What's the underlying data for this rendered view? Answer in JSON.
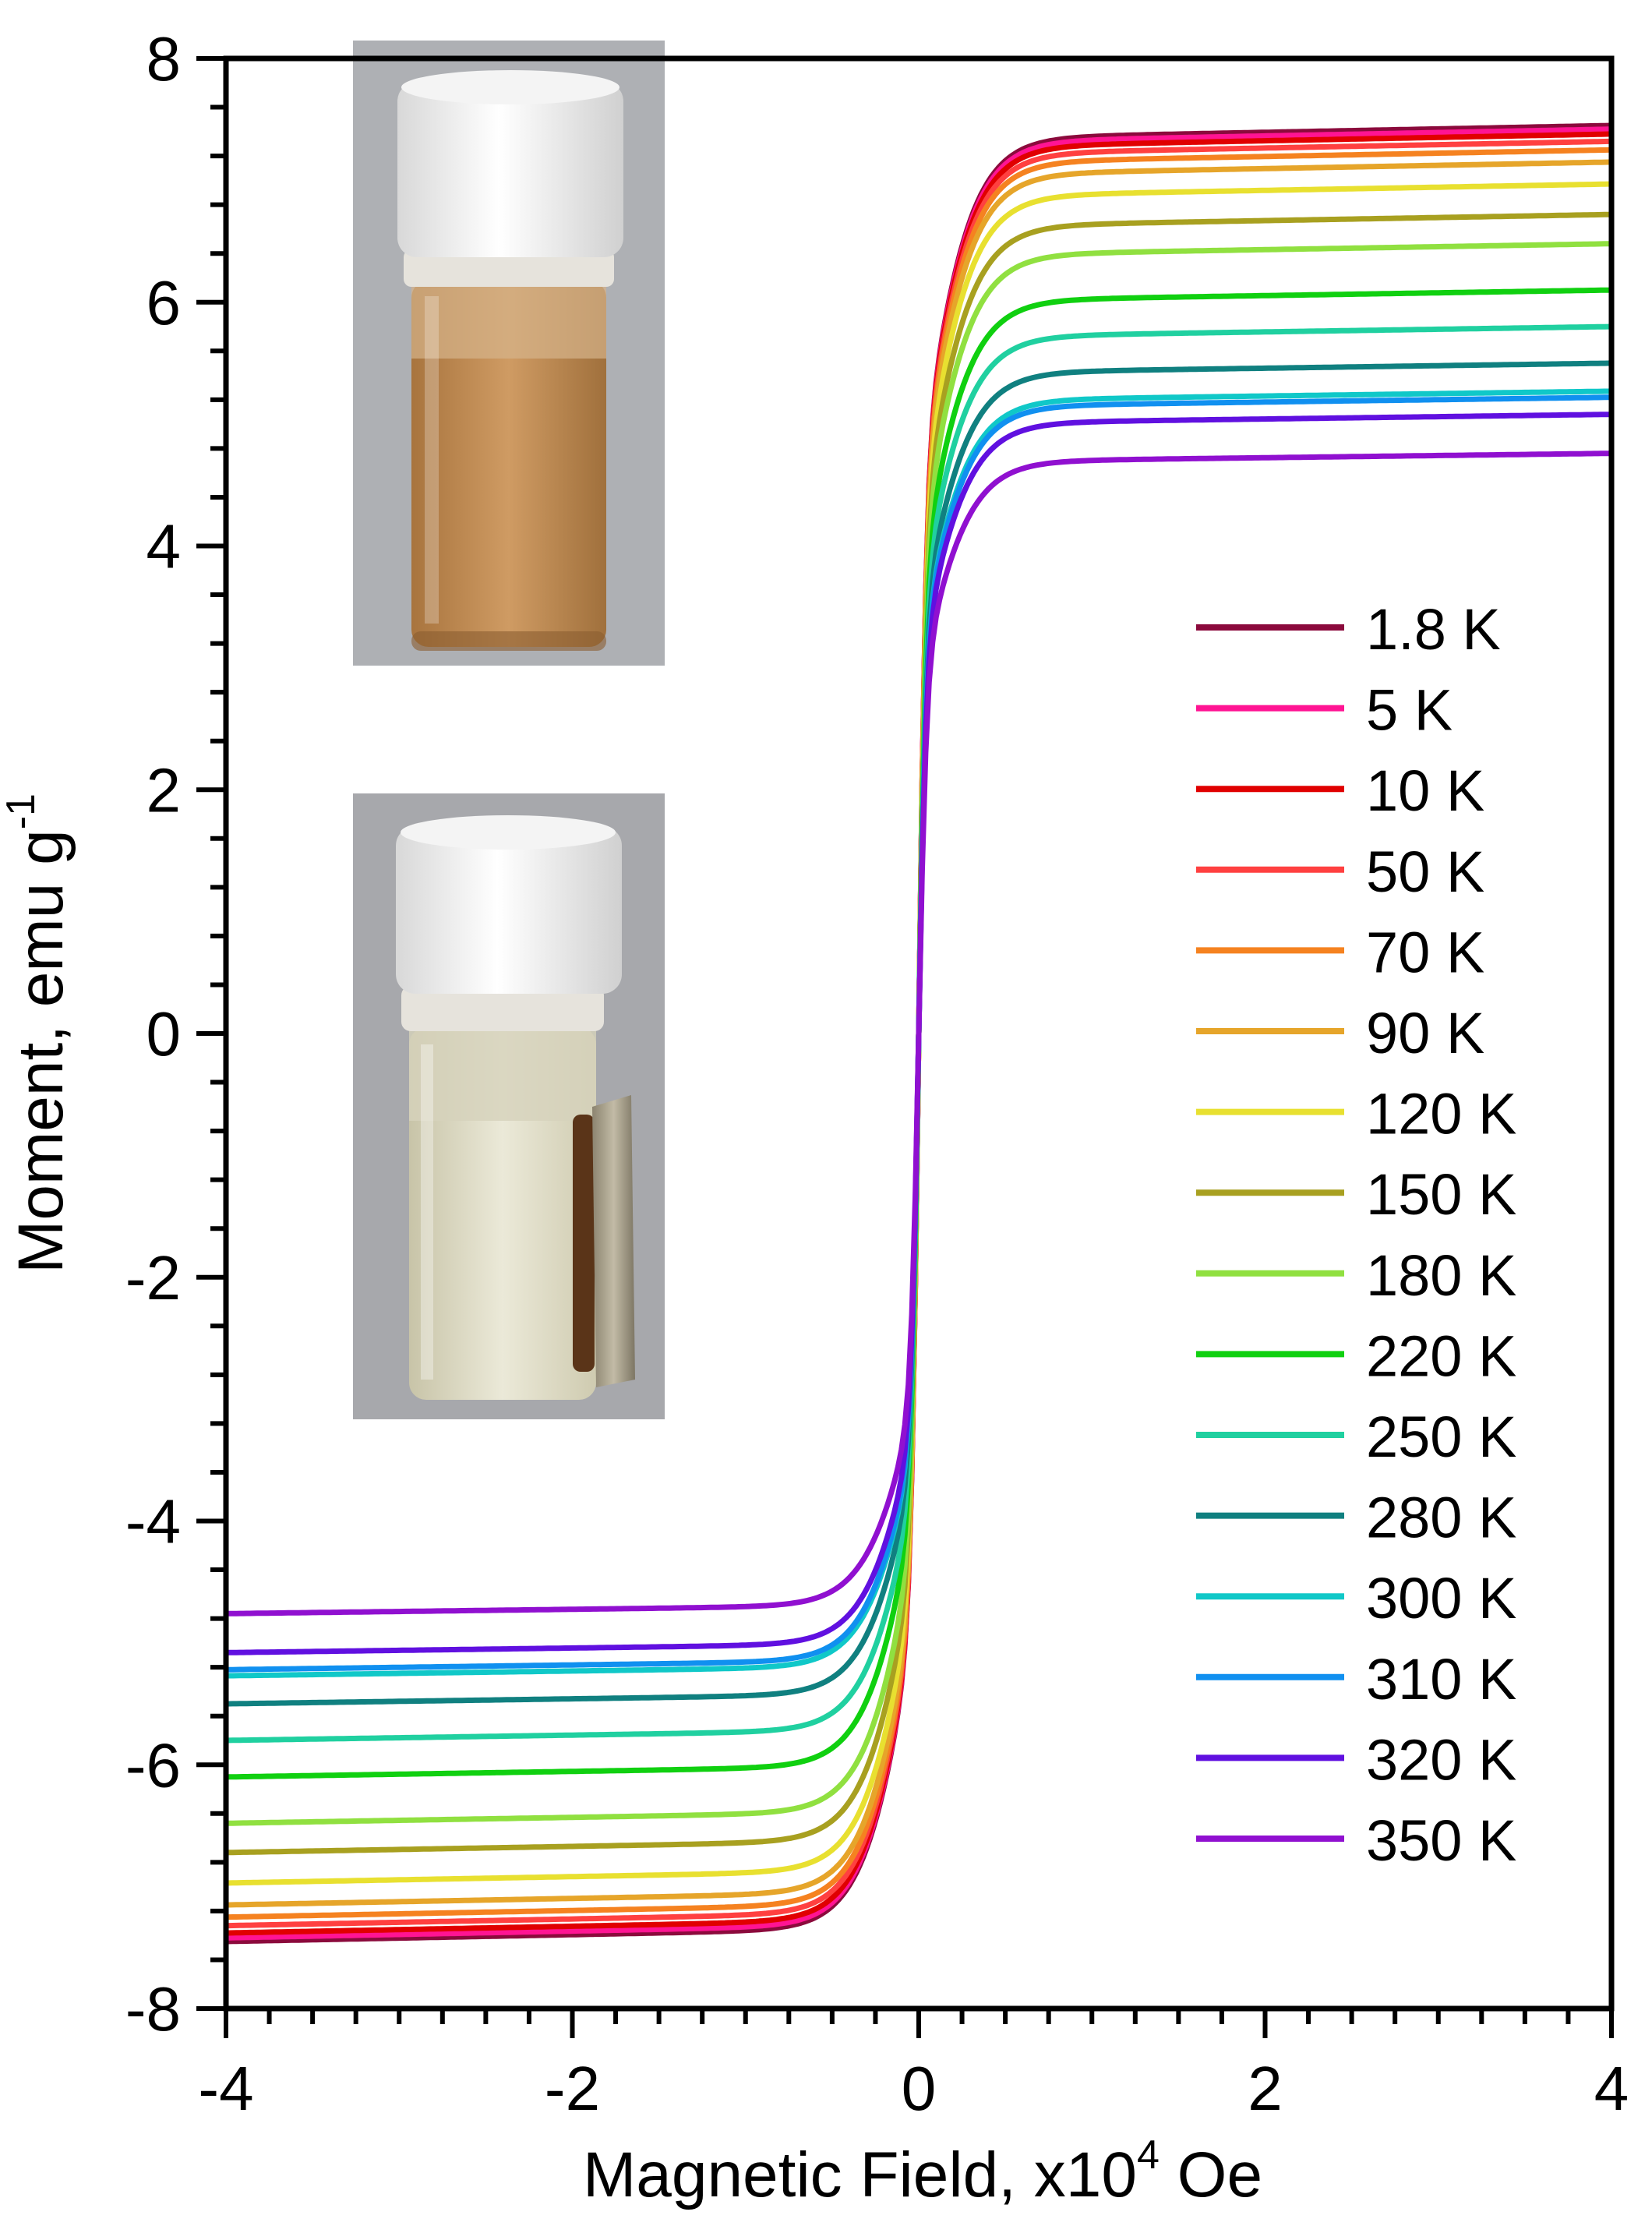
{
  "chart_data": {
    "type": "line",
    "title": "",
    "xlabel": "Magnetic Field, x10",
    "xlabel_sup": "4",
    "xlabel_unit": " Oe",
    "ylabel": "Moment, emu g",
    "ylabel_sup": "-1",
    "xlim": [
      -4,
      4
    ],
    "ylim": [
      -8,
      8
    ],
    "x_ticks": [
      -4,
      -2,
      0,
      2,
      4
    ],
    "y_ticks": [
      -8,
      -6,
      -4,
      -2,
      0,
      2,
      4,
      6,
      8
    ],
    "x_tick_labels": [
      "-4",
      "-2",
      "0",
      "2",
      "4"
    ],
    "y_tick_labels": [
      "-8",
      "-6",
      "-4",
      "-2",
      "0",
      "2",
      "4",
      "6",
      "8"
    ],
    "grid": false,
    "legend_position": "right",
    "series": [
      {
        "name": "1.8 K",
        "color": "#8b0a3c",
        "ms": 7.45
      },
      {
        "name": "5 K",
        "color": "#ff1493",
        "ms": 7.42
      },
      {
        "name": "10 K",
        "color": "#e00000",
        "ms": 7.38
      },
      {
        "name": "50 K",
        "color": "#ff4040",
        "ms": 7.32
      },
      {
        "name": "70 K",
        "color": "#f58220",
        "ms": 7.25
      },
      {
        "name": "90 K",
        "color": "#e6a52a",
        "ms": 7.15
      },
      {
        "name": "120 K",
        "color": "#e8e030",
        "ms": 6.97
      },
      {
        "name": "150 K",
        "color": "#a8a020",
        "ms": 6.72
      },
      {
        "name": "180 K",
        "color": "#90e040",
        "ms": 6.48
      },
      {
        "name": "220 K",
        "color": "#10d010",
        "ms": 6.1
      },
      {
        "name": "250 K",
        "color": "#20d0a0",
        "ms": 5.8
      },
      {
        "name": "280 K",
        "color": "#108080",
        "ms": 5.5
      },
      {
        "name": "300 K",
        "color": "#10c8c8",
        "ms": 5.27
      },
      {
        "name": "310 K",
        "color": "#1090f0",
        "ms": 5.22
      },
      {
        "name": "320 K",
        "color": "#6010e0",
        "ms": 5.08
      },
      {
        "name": "350 K",
        "color": "#9010d0",
        "ms": 4.76
      }
    ]
  },
  "insets": [
    {
      "name": "vial-brown-suspension"
    },
    {
      "name": "vial-clear-with-magnet"
    }
  ]
}
